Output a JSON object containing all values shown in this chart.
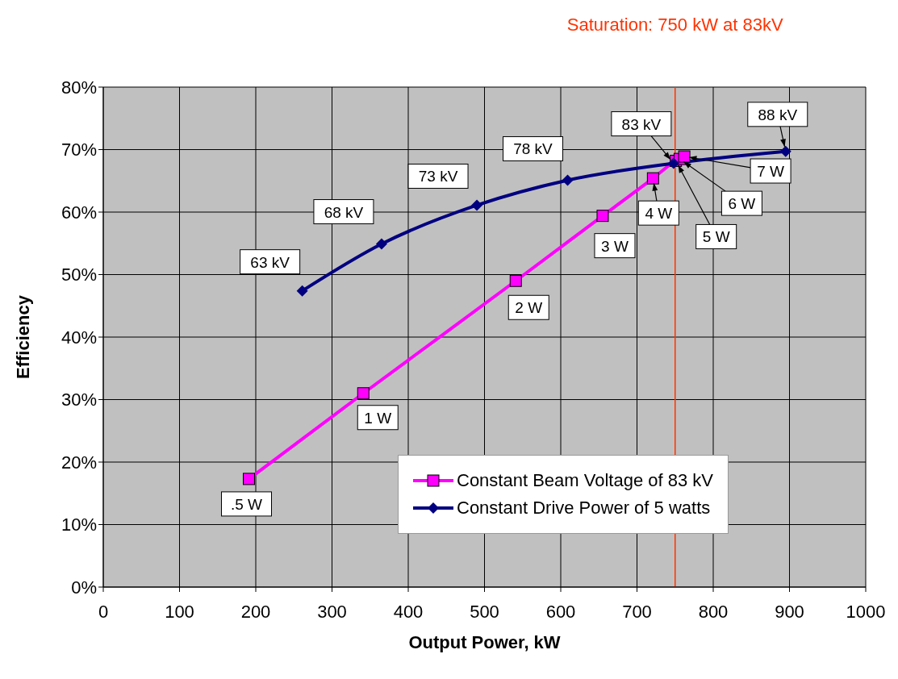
{
  "chart_data": {
    "type": "line",
    "xlabel": "Output Power, kW",
    "ylabel": "Efficiency",
    "xlim": [
      0,
      1000
    ],
    "xticks": [
      0,
      100,
      200,
      300,
      400,
      500,
      600,
      700,
      800,
      900,
      1000
    ],
    "ylim": [
      0,
      80
    ],
    "yticks": [
      {
        "value": 0,
        "label": "0%"
      },
      {
        "value": 10,
        "label": "10%"
      },
      {
        "value": 20,
        "label": "20%"
      },
      {
        "value": 30,
        "label": "30%"
      },
      {
        "value": 40,
        "label": "40%"
      },
      {
        "value": 50,
        "label": "50%"
      },
      {
        "value": 60,
        "label": "60%"
      },
      {
        "value": 70,
        "label": "70%"
      },
      {
        "value": 80,
        "label": "80%"
      }
    ],
    "grid": true,
    "legend": "bottom right",
    "line_style": "solid",
    "series": [
      {
        "name": "Constant Beam Voltage of 83 kV",
        "color": "#ff00ff",
        "marker": "square",
        "x": [
          191,
          341,
          541,
          655,
          721,
          751,
          756,
          762
        ],
        "values": [
          17.3,
          31.0,
          49.0,
          59.4,
          65.4,
          68.2,
          68.5,
          68.9
        ]
      },
      {
        "name": "Constant Drive Power of 5 watts",
        "color": "#000080",
        "marker": "diamond",
        "x": [
          261,
          365,
          490,
          609,
          748,
          895
        ],
        "values": [
          47.4,
          54.9,
          61.1,
          65.1,
          67.8,
          69.7
        ]
      }
    ],
    "ref_lines": [
      {
        "axis": "x",
        "value": 750,
        "label": "Saturation: 750 kW at 83kV",
        "color": "#ff3300"
      }
    ],
    "annotations": [
      {
        "text": ".5 W",
        "x": 191,
        "y": 17.3
      },
      {
        "text": "1 W",
        "x": 341,
        "y": 31.0
      },
      {
        "text": "2 W",
        "x": 541,
        "y": 49.0
      },
      {
        "text": "3 W",
        "x": 655,
        "y": 59.4
      },
      {
        "text": "4 W",
        "x": 721,
        "y": 65.4
      },
      {
        "text": "5 W",
        "x": 751,
        "y": 68.2
      },
      {
        "text": "6 W",
        "x": 756,
        "y": 68.5
      },
      {
        "text": "7 W",
        "x": 762,
        "y": 68.9
      },
      {
        "text": "63 kV",
        "x": 261,
        "y": 47.4
      },
      {
        "text": "68 kV",
        "x": 365,
        "y": 54.9
      },
      {
        "text": "73 kV",
        "x": 490,
        "y": 61.1
      },
      {
        "text": "78 kV",
        "x": 609,
        "y": 65.1
      },
      {
        "text": "83 kV",
        "x": 748,
        "y": 67.8
      },
      {
        "text": "88 kV",
        "x": 895,
        "y": 69.7
      }
    ]
  }
}
